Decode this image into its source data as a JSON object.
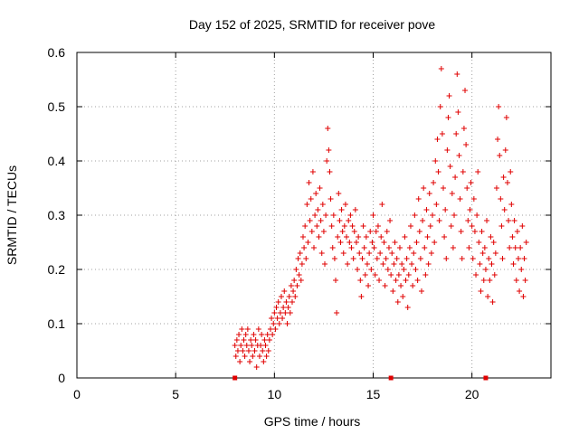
{
  "chart_data": {
    "type": "scatter",
    "title": "Day 152 of 2025, SRMTID for receiver pove",
    "xlabel": "GPS time / hours",
    "ylabel": "SRMTID / TECUs",
    "xlim": [
      0,
      24
    ],
    "ylim": [
      0,
      0.6
    ],
    "xticks": [
      "0",
      "5",
      "10",
      "15",
      "20"
    ],
    "yticks": [
      "0",
      "0.1",
      "0.2",
      "0.3",
      "0.4",
      "0.5",
      "0.6"
    ],
    "grid": true,
    "marker": "plus",
    "color": "#e00000",
    "zero_markers_x": [
      8.0,
      15.9,
      20.7
    ],
    "series": [
      {
        "points": [
          [
            8.0,
            0.06
          ],
          [
            8.05,
            0.04
          ],
          [
            8.1,
            0.07
          ],
          [
            8.15,
            0.05
          ],
          [
            8.2,
            0.08
          ],
          [
            8.25,
            0.03
          ],
          [
            8.3,
            0.06
          ],
          [
            8.35,
            0.09
          ],
          [
            8.4,
            0.05
          ],
          [
            8.45,
            0.07
          ],
          [
            8.5,
            0.04
          ],
          [
            8.55,
            0.08
          ],
          [
            8.6,
            0.06
          ],
          [
            8.65,
            0.09
          ],
          [
            8.7,
            0.05
          ],
          [
            8.75,
            0.03
          ],
          [
            8.8,
            0.07
          ],
          [
            8.85,
            0.06
          ],
          [
            8.9,
            0.04
          ],
          [
            8.95,
            0.08
          ],
          [
            9.0,
            0.05
          ],
          [
            9.05,
            0.07
          ],
          [
            9.1,
            0.02
          ],
          [
            9.15,
            0.06
          ],
          [
            9.2,
            0.09
          ],
          [
            9.25,
            0.04
          ],
          [
            9.3,
            0.06
          ],
          [
            9.35,
            0.08
          ],
          [
            9.4,
            0.05
          ],
          [
            9.45,
            0.03
          ],
          [
            9.5,
            0.07
          ],
          [
            9.55,
            0.06
          ],
          [
            9.6,
            0.04
          ],
          [
            9.65,
            0.08
          ],
          [
            9.7,
            0.05
          ],
          [
            9.75,
            0.07
          ],
          [
            9.8,
            0.09
          ],
          [
            9.85,
            0.11
          ],
          [
            9.9,
            0.08
          ],
          [
            9.95,
            0.1
          ],
          [
            10.0,
            0.12
          ],
          [
            10.05,
            0.09
          ],
          [
            10.1,
            0.13
          ],
          [
            10.15,
            0.11
          ],
          [
            10.2,
            0.14
          ],
          [
            10.25,
            0.1
          ],
          [
            10.3,
            0.12
          ],
          [
            10.35,
            0.15
          ],
          [
            10.4,
            0.11
          ],
          [
            10.45,
            0.13
          ],
          [
            10.5,
            0.16
          ],
          [
            10.55,
            0.12
          ],
          [
            10.6,
            0.14
          ],
          [
            10.65,
            0.1
          ],
          [
            10.7,
            0.13
          ],
          [
            10.75,
            0.15
          ],
          [
            10.8,
            0.12
          ],
          [
            10.85,
            0.17
          ],
          [
            10.9,
            0.14
          ],
          [
            10.95,
            0.16
          ],
          [
            11.0,
            0.18
          ],
          [
            11.05,
            0.15
          ],
          [
            11.1,
            0.2
          ],
          [
            11.15,
            0.17
          ],
          [
            11.2,
            0.22
          ],
          [
            11.25,
            0.19
          ],
          [
            11.3,
            0.23
          ],
          [
            11.35,
            0.18
          ],
          [
            11.4,
            0.21
          ],
          [
            11.45,
            0.26
          ],
          [
            11.5,
            0.24
          ],
          [
            11.55,
            0.28
          ],
          [
            11.6,
            0.22
          ],
          [
            11.65,
            0.32
          ],
          [
            11.7,
            0.25
          ],
          [
            11.75,
            0.36
          ],
          [
            11.8,
            0.29
          ],
          [
            11.85,
            0.33
          ],
          [
            11.9,
            0.27
          ],
          [
            11.95,
            0.38
          ],
          [
            12.0,
            0.24
          ],
          [
            12.05,
            0.3
          ],
          [
            12.1,
            0.34
          ],
          [
            12.15,
            0.28
          ],
          [
            12.2,
            0.31
          ],
          [
            12.25,
            0.26
          ],
          [
            12.3,
            0.35
          ],
          [
            12.35,
            0.29
          ],
          [
            12.4,
            0.23
          ],
          [
            12.45,
            0.32
          ],
          [
            12.5,
            0.27
          ],
          [
            12.55,
            0.21
          ],
          [
            12.6,
            0.3
          ],
          [
            12.65,
            0.4
          ],
          [
            12.7,
            0.46
          ],
          [
            12.75,
            0.42
          ],
          [
            12.8,
            0.38
          ],
          [
            12.85,
            0.33
          ],
          [
            12.9,
            0.28
          ],
          [
            12.95,
            0.24
          ],
          [
            13.0,
            0.3
          ],
          [
            13.05,
            0.22
          ],
          [
            13.1,
            0.18
          ],
          [
            13.15,
            0.12
          ],
          [
            13.2,
            0.26
          ],
          [
            13.25,
            0.34
          ],
          [
            13.3,
            0.29
          ],
          [
            13.35,
            0.25
          ],
          [
            13.4,
            0.31
          ],
          [
            13.45,
            0.27
          ],
          [
            13.5,
            0.23
          ],
          [
            13.55,
            0.28
          ],
          [
            13.6,
            0.32
          ],
          [
            13.65,
            0.26
          ],
          [
            13.7,
            0.21
          ],
          [
            13.75,
            0.29
          ],
          [
            13.8,
            0.25
          ],
          [
            13.85,
            0.3
          ],
          [
            13.9,
            0.24
          ],
          [
            13.95,
            0.28
          ],
          [
            14.0,
            0.22
          ],
          [
            14.05,
            0.27
          ],
          [
            14.1,
            0.31
          ],
          [
            14.15,
            0.25
          ],
          [
            14.2,
            0.2
          ],
          [
            14.25,
            0.26
          ],
          [
            14.3,
            0.23
          ],
          [
            14.35,
            0.18
          ],
          [
            14.4,
            0.15
          ],
          [
            14.45,
            0.22
          ],
          [
            14.5,
            0.28
          ],
          [
            14.55,
            0.24
          ],
          [
            14.6,
            0.19
          ],
          [
            14.65,
            0.26
          ],
          [
            14.7,
            0.21
          ],
          [
            14.75,
            0.17
          ],
          [
            14.8,
            0.23
          ],
          [
            14.85,
            0.27
          ],
          [
            14.9,
            0.2
          ],
          [
            14.95,
            0.25
          ],
          [
            15.0,
            0.3
          ],
          [
            15.05,
            0.24
          ],
          [
            15.1,
            0.19
          ],
          [
            15.15,
            0.27
          ],
          [
            15.2,
            0.22
          ],
          [
            15.25,
            0.28
          ],
          [
            15.3,
            0.18
          ],
          [
            15.35,
            0.23
          ],
          [
            15.4,
            0.26
          ],
          [
            15.45,
            0.32
          ],
          [
            15.5,
            0.21
          ],
          [
            15.55,
            0.25
          ],
          [
            15.6,
            0.17
          ],
          [
            15.65,
            0.22
          ],
          [
            15.7,
            0.27
          ],
          [
            15.75,
            0.2
          ],
          [
            15.8,
            0.24
          ],
          [
            15.85,
            0.29
          ],
          [
            15.9,
            0.19
          ],
          [
            15.95,
            0.23
          ],
          [
            16.0,
            0.16
          ],
          [
            16.05,
            0.21
          ],
          [
            16.1,
            0.25
          ],
          [
            16.15,
            0.18
          ],
          [
            16.2,
            0.22
          ],
          [
            16.25,
            0.14
          ],
          [
            16.3,
            0.19
          ],
          [
            16.35,
            0.24
          ],
          [
            16.4,
            0.17
          ],
          [
            16.45,
            0.21
          ],
          [
            16.5,
            0.15
          ],
          [
            16.55,
            0.2
          ],
          [
            16.6,
            0.26
          ],
          [
            16.65,
            0.18
          ],
          [
            16.7,
            0.22
          ],
          [
            16.75,
            0.13
          ],
          [
            16.8,
            0.19
          ],
          [
            16.85,
            0.24
          ],
          [
            16.9,
            0.28
          ],
          [
            16.95,
            0.21
          ],
          [
            17.0,
            0.17
          ],
          [
            17.05,
            0.23
          ],
          [
            17.1,
            0.3
          ],
          [
            17.15,
            0.2
          ],
          [
            17.2,
            0.25
          ],
          [
            17.25,
            0.18
          ],
          [
            17.3,
            0.33
          ],
          [
            17.35,
            0.27
          ],
          [
            17.4,
            0.22
          ],
          [
            17.45,
            0.16
          ],
          [
            17.5,
            0.29
          ],
          [
            17.55,
            0.35
          ],
          [
            17.6,
            0.24
          ],
          [
            17.65,
            0.19
          ],
          [
            17.7,
            0.31
          ],
          [
            17.75,
            0.26
          ],
          [
            17.8,
            0.21
          ],
          [
            17.85,
            0.34
          ],
          [
            17.9,
            0.28
          ],
          [
            17.95,
            0.23
          ],
          [
            18.0,
            0.3
          ],
          [
            18.05,
            0.36
          ],
          [
            18.1,
            0.25
          ],
          [
            18.15,
            0.4
          ],
          [
            18.2,
            0.32
          ],
          [
            18.25,
            0.44
          ],
          [
            18.3,
            0.38
          ],
          [
            18.35,
            0.29
          ],
          [
            18.4,
            0.5
          ],
          [
            18.45,
            0.57
          ],
          [
            18.5,
            0.45
          ],
          [
            18.55,
            0.35
          ],
          [
            18.6,
            0.26
          ],
          [
            18.65,
            0.31
          ],
          [
            18.7,
            0.22
          ],
          [
            18.75,
            0.42
          ],
          [
            18.8,
            0.48
          ],
          [
            18.85,
            0.52
          ],
          [
            18.9,
            0.39
          ],
          [
            18.95,
            0.28
          ],
          [
            19.0,
            0.34
          ],
          [
            19.05,
            0.24
          ],
          [
            19.1,
            0.3
          ],
          [
            19.15,
            0.37
          ],
          [
            19.2,
            0.45
          ],
          [
            19.25,
            0.56
          ],
          [
            19.3,
            0.49
          ],
          [
            19.35,
            0.41
          ],
          [
            19.4,
            0.33
          ],
          [
            19.45,
            0.27
          ],
          [
            19.5,
            0.22
          ],
          [
            19.55,
            0.38
          ],
          [
            19.6,
            0.46
          ],
          [
            19.65,
            0.53
          ],
          [
            19.7,
            0.43
          ],
          [
            19.75,
            0.35
          ],
          [
            19.8,
            0.29
          ],
          [
            19.85,
            0.24
          ],
          [
            19.9,
            0.31
          ],
          [
            19.95,
            0.36
          ],
          [
            20.0,
            0.28
          ],
          [
            20.05,
            0.22
          ],
          [
            20.1,
            0.33
          ],
          [
            20.15,
            0.27
          ],
          [
            20.2,
            0.19
          ],
          [
            20.25,
            0.3
          ],
          [
            20.3,
            0.38
          ],
          [
            20.35,
            0.25
          ],
          [
            20.4,
            0.21
          ],
          [
            20.45,
            0.16
          ],
          [
            20.5,
            0.27
          ],
          [
            20.55,
            0.23
          ],
          [
            20.6,
            0.18
          ],
          [
            20.65,
            0.24
          ],
          [
            20.7,
            0.2
          ],
          [
            20.75,
            0.29
          ],
          [
            20.8,
            0.15
          ],
          [
            20.85,
            0.22
          ],
          [
            20.9,
            0.18
          ],
          [
            20.95,
            0.26
          ],
          [
            21.0,
            0.21
          ],
          [
            21.05,
            0.14
          ],
          [
            21.1,
            0.25
          ],
          [
            21.15,
            0.19
          ],
          [
            21.2,
            0.23
          ],
          [
            21.25,
            0.35
          ],
          [
            21.3,
            0.44
          ],
          [
            21.35,
            0.5
          ],
          [
            21.4,
            0.41
          ],
          [
            21.45,
            0.33
          ],
          [
            21.5,
            0.28
          ],
          [
            21.55,
            0.22
          ],
          [
            21.6,
            0.37
          ],
          [
            21.65,
            0.31
          ],
          [
            21.7,
            0.42
          ],
          [
            21.75,
            0.48
          ],
          [
            21.8,
            0.36
          ],
          [
            21.85,
            0.29
          ],
          [
            21.9,
            0.24
          ],
          [
            21.95,
            0.38
          ],
          [
            22.0,
            0.32
          ],
          [
            22.05,
            0.26
          ],
          [
            22.1,
            0.21
          ],
          [
            22.15,
            0.29
          ],
          [
            22.2,
            0.24
          ],
          [
            22.25,
            0.18
          ],
          [
            22.3,
            0.27
          ],
          [
            22.35,
            0.22
          ],
          [
            22.4,
            0.16
          ],
          [
            22.45,
            0.24
          ],
          [
            22.5,
            0.2
          ],
          [
            22.55,
            0.28
          ],
          [
            22.6,
            0.15
          ],
          [
            22.65,
            0.22
          ],
          [
            22.7,
            0.18
          ],
          [
            22.75,
            0.25
          ]
        ]
      }
    ]
  }
}
